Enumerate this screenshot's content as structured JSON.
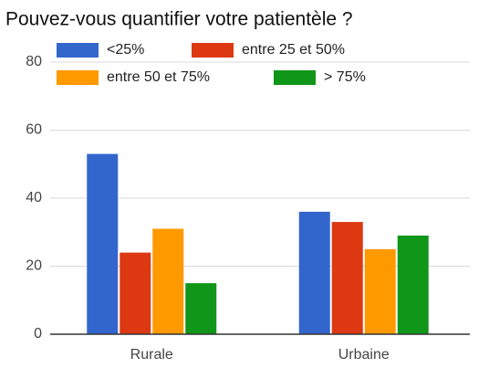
{
  "chart_data": {
    "type": "bar",
    "title": "Pouvez-vous quantifier votre patientèle ?",
    "categories": [
      "Rurale",
      "Urbaine"
    ],
    "series": [
      {
        "name": "<25%",
        "color": "#3366cc",
        "values": [
          53,
          36
        ]
      },
      {
        "name": "entre 25 et 50%",
        "color": "#dc3912",
        "values": [
          24,
          33
        ]
      },
      {
        "name": "entre 50 et 75%",
        "color": "#ff9900",
        "values": [
          31,
          25
        ]
      },
      {
        "name": "> 75%",
        "color": "#109618",
        "values": [
          15,
          29
        ]
      }
    ],
    "ylim": [
      0,
      80
    ],
    "yticks": [
      0,
      20,
      40,
      60,
      80
    ],
    "grid": true,
    "legend": "top"
  }
}
